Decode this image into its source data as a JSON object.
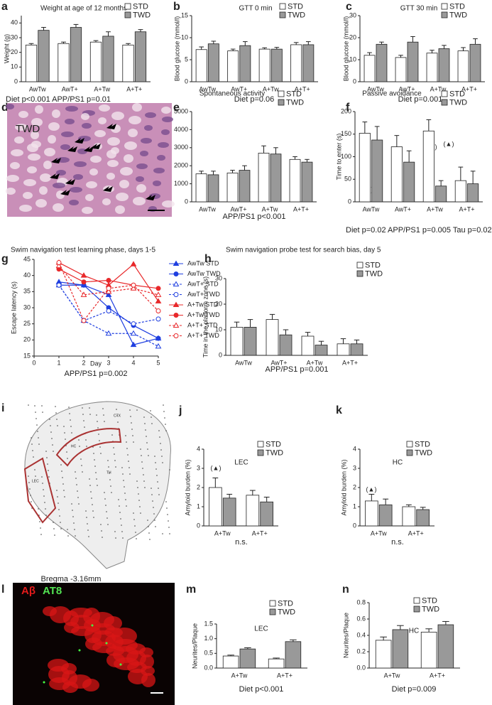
{
  "chart_data": [
    {
      "panel": "a",
      "type": "bar",
      "title": "Weight at age of 12 months",
      "y_label": "Weight (g)",
      "categories": [
        "AwTw",
        "AwT+",
        "A+Tw",
        "A+T+"
      ],
      "series": [
        {
          "name": "STD",
          "color": "#ffffff",
          "values": [
            25,
            26,
            27,
            25
          ],
          "errors": [
            1,
            1,
            1,
            1
          ]
        },
        {
          "name": "TWD",
          "color": "#999999",
          "values": [
            35,
            37,
            31,
            34
          ],
          "errors": [
            2,
            2,
            3,
            1.5
          ]
        }
      ],
      "ylim": [
        0,
        45
      ],
      "yticks": [
        0,
        10,
        20,
        30,
        40
      ],
      "note": "Diet  p<0.001     APP/PS1 p=0.01"
    },
    {
      "panel": "b",
      "type": "bar",
      "title": "GTT 0 min",
      "y_label": "Blood glucose (mmol/l)",
      "categories": [
        "AwTw",
        "AwT+",
        "A+Tw",
        "A+T+"
      ],
      "series": [
        {
          "name": "STD",
          "color": "#ffffff",
          "values": [
            7.3,
            7,
            7.4,
            8.4
          ],
          "errors": [
            0.6,
            0.4,
            0.3,
            0.5
          ]
        },
        {
          "name": "TWD",
          "color": "#999999",
          "values": [
            8.6,
            8.2,
            7.4,
            8.4
          ],
          "errors": [
            0.6,
            0.9,
            0.4,
            0.7
          ]
        }
      ],
      "ylim": [
        0,
        15
      ],
      "yticks": [
        0,
        5,
        10,
        15
      ],
      "note": "Diet p=0.06"
    },
    {
      "panel": "c",
      "type": "bar",
      "title": "GTT 30 min",
      "y_label": "Blood glucose (mmol/l)",
      "categories": [
        "AwTw",
        "AwT+",
        "A+Tw",
        "A+T+"
      ],
      "series": [
        {
          "name": "STD",
          "color": "#ffffff",
          "values": [
            12,
            11,
            13,
            14
          ],
          "errors": [
            1.2,
            1,
            1.3,
            1.5
          ]
        },
        {
          "name": "TWD",
          "color": "#999999",
          "values": [
            17,
            18,
            15,
            17
          ],
          "errors": [
            1,
            2.5,
            1.5,
            2.5
          ]
        }
      ],
      "ylim": [
        0,
        30
      ],
      "yticks": [
        0,
        10,
        20,
        30
      ],
      "note": "Diet p=0.001"
    },
    {
      "panel": "e",
      "type": "bar",
      "title": "Spontaneous activity",
      "y_label": "Distance (cm)",
      "categories": [
        "AwTw",
        "AwT+",
        "A+Tw",
        "A+T+"
      ],
      "series": [
        {
          "name": "STD",
          "color": "#ffffff",
          "values": [
            1550,
            1600,
            2700,
            2350
          ],
          "errors": [
            150,
            150,
            400,
            150
          ]
        },
        {
          "name": "TWD",
          "color": "#999999",
          "values": [
            1500,
            1750,
            2650,
            2200
          ],
          "errors": [
            200,
            250,
            350,
            150
          ]
        }
      ],
      "ylim": [
        0,
        5000
      ],
      "yticks": [
        0,
        1000,
        2000,
        3000,
        4000,
        5000
      ],
      "note": "APP/PS1 p<0.001"
    },
    {
      "panel": "f",
      "type": "bar",
      "title": "Passive avoidance",
      "y_label": "Time to enter (s)",
      "categories": [
        "AwTw",
        "AwT+",
        "A+Tw",
        "A+T+"
      ],
      "series": [
        {
          "name": "STD",
          "color": "#ffffff",
          "values": [
            152,
            122,
            157,
            47
          ],
          "errors": [
            25,
            25,
            25,
            30
          ]
        },
        {
          "name": "TWD",
          "color": "#999999",
          "values": [
            137,
            88,
            35,
            40
          ],
          "errors": [
            30,
            25,
            12,
            28
          ]
        }
      ],
      "ylim": [
        0,
        200
      ],
      "yticks": [
        0,
        50,
        100,
        150,
        200
      ],
      "annotations": [
        "(▲)",
        "(▲)",
        "(▲)"
      ],
      "note": "Diet p=0.02    APP/PS1 p=0.005    Tau p=0.02"
    },
    {
      "panel": "g",
      "type": "line",
      "title": "Swim navigation test learning phase, days 1-5",
      "x_label": "Day",
      "y_label": "Escape latency (s)",
      "x": [
        1,
        2,
        3,
        4,
        5
      ],
      "series": [
        {
          "name": "AwTw STD",
          "color": "#1f3fe0",
          "marker": "triangle",
          "filled": true,
          "dashed": false,
          "values": [
            38,
            37,
            34,
            18.5,
            20.5
          ]
        },
        {
          "name": "AwTw TWD",
          "color": "#1f3fe0",
          "marker": "circle",
          "filled": true,
          "dashed": false,
          "values": [
            37,
            37,
            30,
            24.5,
            20.5
          ]
        },
        {
          "name": "AwT+ STD",
          "color": "#1f3fe0",
          "marker": "triangle",
          "filled": false,
          "dashed": true,
          "values": [
            37,
            26,
            22,
            22,
            18
          ]
        },
        {
          "name": "AwT+ TWD",
          "color": "#1f3fe0",
          "marker": "circle",
          "filled": false,
          "dashed": true,
          "values": [
            37,
            26,
            29,
            25,
            26.5
          ]
        },
        {
          "name": "A+Tw STD",
          "color": "#e8282a",
          "marker": "triangle",
          "filled": true,
          "dashed": false,
          "values": [
            44,
            40,
            37,
            43.5,
            32
          ]
        },
        {
          "name": "A+Tw TWD",
          "color": "#e8282a",
          "marker": "circle",
          "filled": true,
          "dashed": false,
          "values": [
            42,
            38,
            38.5,
            37,
            36
          ]
        },
        {
          "name": "A+T+ STD",
          "color": "#e8282a",
          "marker": "triangle",
          "filled": false,
          "dashed": true,
          "values": [
            43,
            34,
            35,
            36,
            34
          ]
        },
        {
          "name": "A+T+ TWD",
          "color": "#e8282a",
          "marker": "circle",
          "filled": false,
          "dashed": true,
          "values": [
            44,
            26,
            36,
            37,
            29
          ]
        }
      ],
      "xlim": [
        0,
        5
      ],
      "xticks": [
        0,
        1,
        2,
        3,
        4,
        5
      ],
      "ylim": [
        15,
        45
      ],
      "yticks": [
        15,
        20,
        25,
        30,
        35,
        40,
        45
      ],
      "note": "APP/PS1 p=0.002"
    },
    {
      "panel": "h",
      "type": "bar",
      "title": "Swim navigation probe test for search bias, day 5",
      "y_label": "Time in the platform zone (s)",
      "categories": [
        "AwTw",
        "AwT+",
        "A+Tw",
        "A+T+"
      ],
      "series": [
        {
          "name": "STD",
          "color": "#ffffff",
          "values": [
            11,
            14,
            7.5,
            4.5
          ],
          "errors": [
            2,
            2,
            1.5,
            2
          ]
        },
        {
          "name": "TWD",
          "color": "#999999",
          "values": [
            11,
            8,
            4,
            4.5
          ],
          "errors": [
            3,
            2,
            1.5,
            1.5
          ]
        }
      ],
      "ylim": [
        0,
        30
      ],
      "yticks": [
        0,
        10,
        20,
        30
      ],
      "note": "APP/PS1 p=0.001"
    },
    {
      "panel": "j",
      "type": "bar",
      "title": "LEC",
      "y_label": "Amyloid burden (%)",
      "categories": [
        "A+Tw",
        "A+T+"
      ],
      "series": [
        {
          "name": "STD",
          "color": "#ffffff",
          "values": [
            2,
            1.6
          ],
          "errors": [
            0.5,
            0.25
          ]
        },
        {
          "name": "TWD",
          "color": "#999999",
          "values": [
            1.45,
            1.25
          ],
          "errors": [
            0.2,
            0.25
          ]
        }
      ],
      "ylim": [
        0,
        4
      ],
      "yticks": [
        0,
        1,
        2,
        3,
        4
      ],
      "annotations": [
        "(▲)"
      ],
      "note": "n.s."
    },
    {
      "panel": "k",
      "type": "bar",
      "title": "HC",
      "y_label": "Amyloid burden (%)",
      "categories": [
        "A+Tw",
        "A+T+"
      ],
      "series": [
        {
          "name": "STD",
          "color": "#ffffff",
          "values": [
            1.3,
            1
          ],
          "errors": [
            0.35,
            0.1
          ]
        },
        {
          "name": "TWD",
          "color": "#999999",
          "values": [
            1.1,
            0.85
          ],
          "errors": [
            0.3,
            0.12
          ]
        }
      ],
      "ylim": [
        0,
        4
      ],
      "yticks": [
        0,
        1,
        2,
        3,
        4
      ],
      "annotations": [
        "(▲)"
      ],
      "note": "n.s."
    },
    {
      "panel": "m",
      "type": "bar",
      "title": "LEC",
      "y_label": "Neurites/Plaque",
      "categories": [
        "A+Tw",
        "A+T+"
      ],
      "series": [
        {
          "name": "STD",
          "color": "#ffffff",
          "values": [
            0.41,
            0.31
          ],
          "errors": [
            0.03,
            0.03
          ]
        },
        {
          "name": "TWD",
          "color": "#999999",
          "values": [
            0.65,
            0.9
          ],
          "errors": [
            0.04,
            0.06
          ]
        }
      ],
      "ylim": [
        0,
        1.5
      ],
      "yticks": [
        {
          "value": 0,
          "label": "0.0"
        },
        0.5,
        {
          "value": 1,
          "label": "1.0"
        },
        1.5
      ],
      "note": "Diet p<0.001"
    },
    {
      "panel": "n",
      "type": "bar",
      "title": "HC",
      "y_label": "Neurites/Plaque",
      "categories": [
        "A+Tw",
        "A+T+"
      ],
      "series": [
        {
          "name": "STD",
          "color": "#ffffff",
          "values": [
            0.34,
            0.44
          ],
          "errors": [
            0.04,
            0.04
          ]
        },
        {
          "name": "TWD",
          "color": "#999999",
          "values": [
            0.47,
            0.53
          ],
          "errors": [
            0.05,
            0.04
          ]
        }
      ],
      "ylim": [
        0,
        0.8
      ],
      "yticks": [
        {
          "value": 0,
          "label": "0.0"
        },
        0.2,
        0.4,
        0.6,
        0.8
      ],
      "note": "Diet p=0.009"
    }
  ],
  "images": [
    {
      "panel": "d",
      "labels": [
        "TWD"
      ]
    },
    {
      "panel": "i",
      "labels": [
        "CTX",
        "HC",
        "LEC",
        "TH"
      ],
      "caption": "Bregma -3.16mm"
    },
    {
      "panel": "l",
      "labels": [
        "Aβ",
        "AT8"
      ]
    }
  ]
}
